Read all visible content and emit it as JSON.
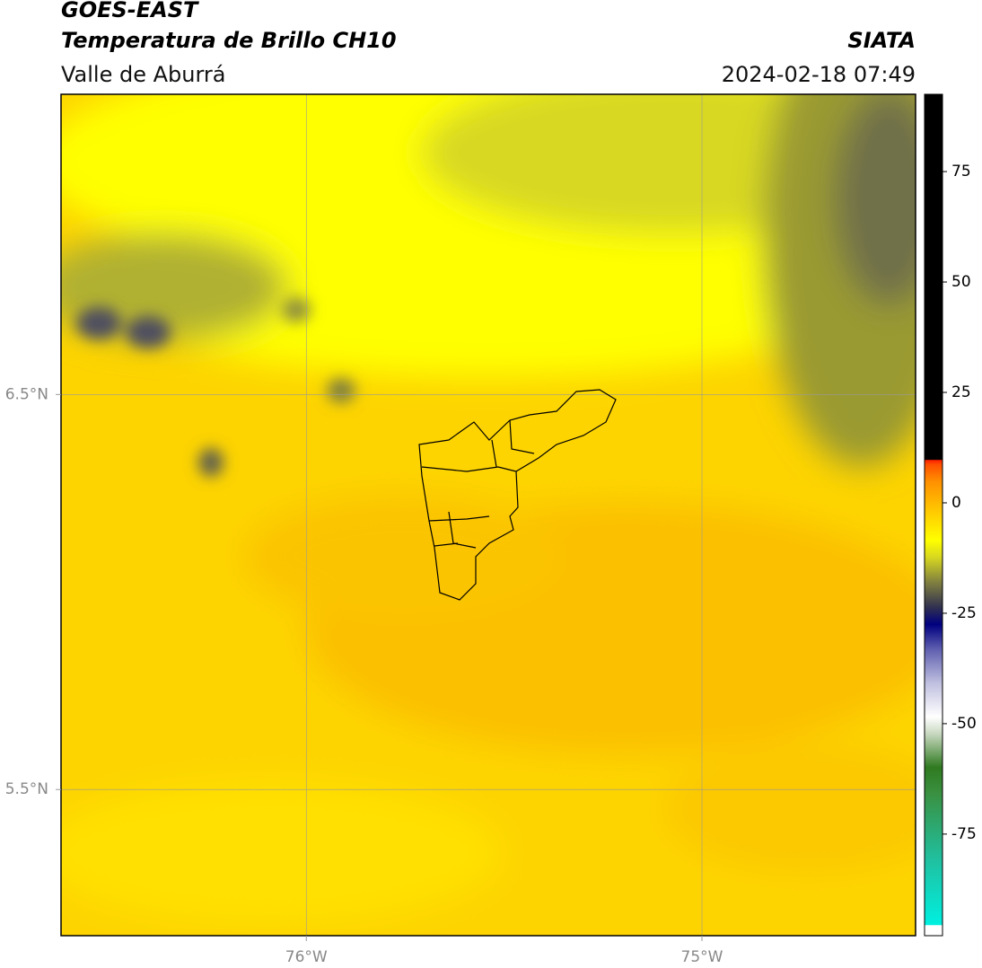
{
  "header": {
    "title": "GOES-EAST",
    "subtitle": "Temperatura de Brillo CH10",
    "region": "Valle de Aburrá",
    "source": "SIATA",
    "datetime": "2024-02-18 07:49"
  },
  "map": {
    "xlim": [
      -76.62,
      -74.46
    ],
    "ylim": [
      5.13,
      7.26
    ],
    "xticks": [
      {
        "value": -76,
        "label": "76°W"
      },
      {
        "value": -75,
        "label": "75°W"
      }
    ],
    "yticks": [
      {
        "value": 6.5,
        "label": "6.5°N"
      },
      {
        "value": 5.5,
        "label": "5.5°N"
      }
    ]
  },
  "colorbar": {
    "lim": [
      -98,
      92.5
    ],
    "ticks": [
      75,
      50,
      25,
      0,
      -25,
      -50,
      -75
    ]
  }
}
